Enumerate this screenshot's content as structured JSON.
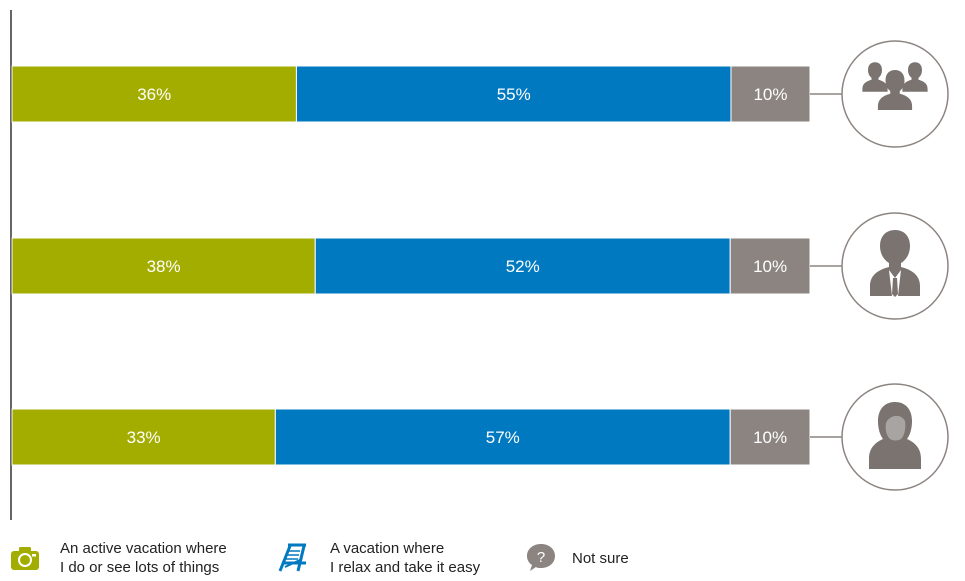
{
  "chart_data": {
    "type": "bar",
    "orientation": "horizontal",
    "stacked": true,
    "categories": [
      "All",
      "Men",
      "Women"
    ],
    "category_icons": [
      "group-icon",
      "man-icon",
      "woman-icon"
    ],
    "series": [
      {
        "name": "An active vacation where\nI do or see lots of things",
        "color": "#a3ad00",
        "values": [
          36,
          38,
          33
        ],
        "labels": [
          "36%",
          "38%",
          "33%"
        ]
      },
      {
        "name": "A vacation where\nI relax and take it easy",
        "color": "#0079c1",
        "values": [
          55,
          52,
          57
        ],
        "labels": [
          "55%",
          "52%",
          "57%"
        ]
      },
      {
        "name": "Not sure",
        "color": "#8c8480",
        "values": [
          10,
          10,
          10
        ],
        "labels": [
          "10%",
          "10%",
          "10%"
        ]
      }
    ],
    "legend_icons": [
      "camera-icon",
      "beach-chair-icon",
      "question-bubble-icon"
    ],
    "legend_position": "bottom",
    "grid": false
  }
}
